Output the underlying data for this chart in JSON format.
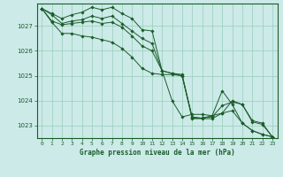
{
  "title": "Graphe pression niveau de la mer (hPa)",
  "x_labels": [
    "0",
    "1",
    "2",
    "3",
    "4",
    "5",
    "6",
    "7",
    "8",
    "9",
    "10",
    "11",
    "12",
    "13",
    "14",
    "15",
    "16",
    "17",
    "18",
    "19",
    "20",
    "21",
    "22",
    "23"
  ],
  "ylim": [
    1022.5,
    1027.9
  ],
  "yticks": [
    1023,
    1024,
    1025,
    1026,
    1027
  ],
  "background_color": "#cceae8",
  "grid_color": "#99ccbb",
  "line_color": "#1a5c2a",
  "lines": [
    [
      1027.7,
      1027.5,
      1027.3,
      1027.45,
      1027.55,
      1027.75,
      1027.65,
      1027.75,
      1027.5,
      1027.3,
      1026.85,
      1026.8,
      1025.2,
      1024.0,
      1023.35,
      1023.45,
      1023.45,
      1023.4,
      1024.4,
      1023.85,
      1023.1,
      1022.8,
      1022.65,
      1022.55
    ],
    [
      1027.7,
      1027.45,
      1027.1,
      1027.2,
      1027.25,
      1027.4,
      1027.3,
      1027.4,
      1027.1,
      1026.8,
      1026.5,
      1026.3,
      1025.2,
      1025.1,
      1025.0,
      1023.3,
      1023.3,
      1023.4,
      1023.5,
      1023.6,
      1023.1,
      1022.8,
      1022.65,
      1022.55
    ],
    [
      1027.7,
      1027.2,
      1027.05,
      1027.1,
      1027.15,
      1027.2,
      1027.1,
      1027.15,
      1026.95,
      1026.6,
      1026.2,
      1026.0,
      1025.2,
      1025.1,
      1025.05,
      1023.35,
      1023.3,
      1023.35,
      1023.8,
      1023.95,
      1023.85,
      1023.2,
      1023.1,
      1022.55
    ],
    [
      1027.7,
      1027.15,
      1026.7,
      1026.7,
      1026.6,
      1026.55,
      1026.45,
      1026.35,
      1026.1,
      1025.75,
      1025.3,
      1025.1,
      1025.05,
      1025.05,
      1025.0,
      1023.28,
      1023.28,
      1023.28,
      1023.5,
      1024.0,
      1023.85,
      1023.15,
      1023.05,
      1022.55
    ]
  ]
}
